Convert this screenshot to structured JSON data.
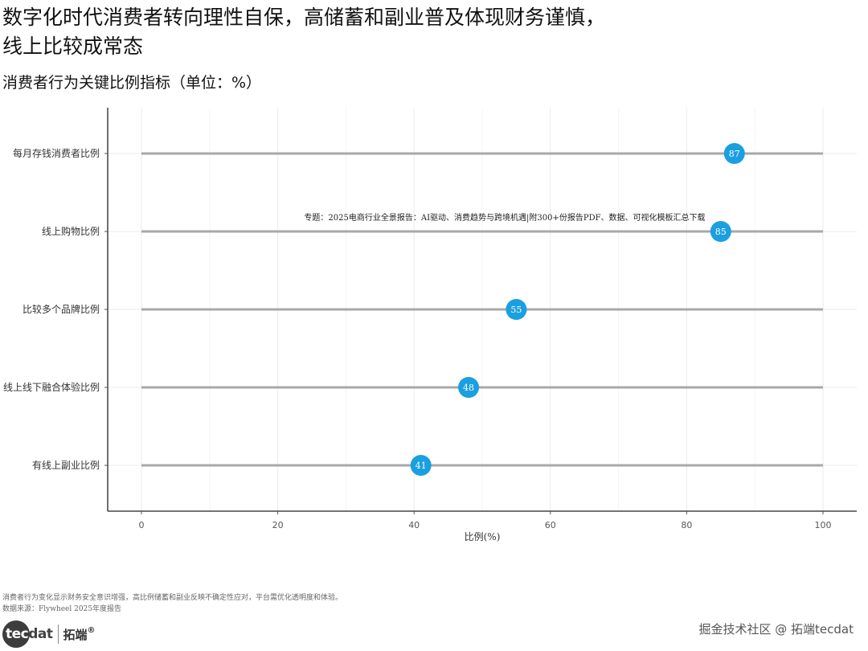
{
  "header": {
    "title_line1": "数字化时代消费者转向理性自保，高储蓄和副业普及体现财务谨慎，",
    "title_line2": "线上比较成常态",
    "subtitle": "消费者行为关键比例指标（单位：%）"
  },
  "chart_data": {
    "type": "lollipop",
    "orientation": "horizontal",
    "categories": [
      "每月存钱消费者比例",
      "线上购物比例",
      "比较多个品牌比例",
      "线上线下融合体验比例",
      "有线上副业比例"
    ],
    "values": [
      87,
      85,
      55,
      48,
      41
    ],
    "xlabel": "比例(%)",
    "xlim": [
      0,
      100
    ],
    "xticks": [
      0,
      20,
      40,
      60,
      80,
      100
    ],
    "grid": true,
    "point_color": "#1a9fe0",
    "stem_color": "#a8a8a8",
    "annotation": "专题：2025电商行业全景报告：AI驱动、消费趋势与跨境机遇|附300+份报告PDF、数据、可视化模板汇总下载"
  },
  "footer": {
    "note": "消费者行为变化显示财务安全意识增强，高比例储蓄和副业反映不确定性应对，平台需优化透明度和体验。",
    "source": "数据来源：Flywheel 2025年度报告",
    "logo_text_a": "tec",
    "logo_text_b": "dat",
    "logo_cn": "拓端",
    "logo_mark": "®",
    "watermark": "掘金技术社区 @ 拓端tecdat"
  }
}
